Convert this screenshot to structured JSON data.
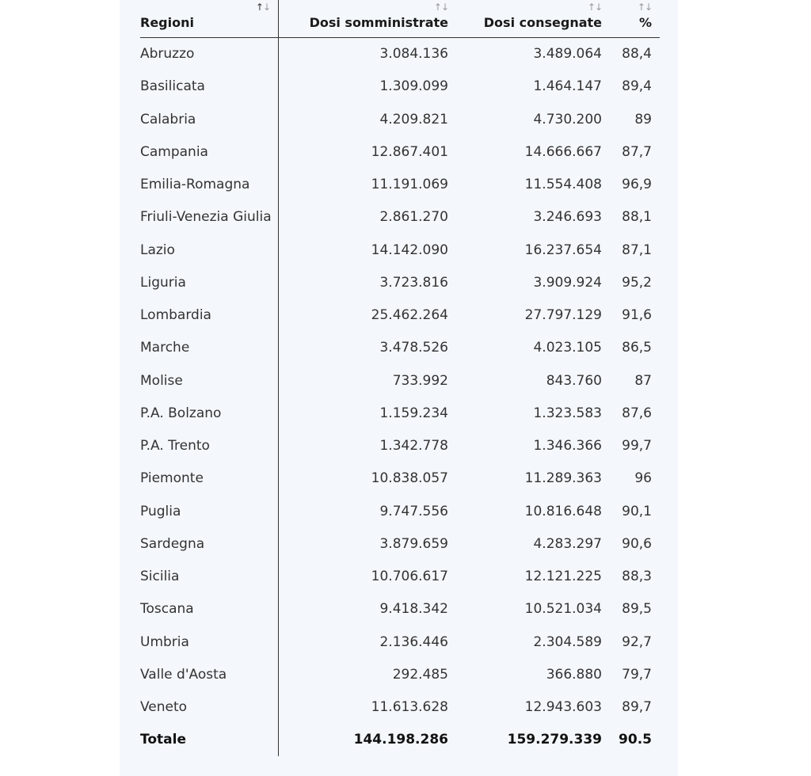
{
  "table": {
    "headers": {
      "region": "Regioni",
      "administered": "Dosi somministrate",
      "delivered": "Dosi consegnate",
      "percent": "%"
    },
    "sort_icon": "↑↓",
    "rows": [
      {
        "region": "Abruzzo",
        "administered": "3.084.136",
        "delivered": "3.489.064",
        "percent": "88,4"
      },
      {
        "region": "Basilicata",
        "administered": "1.309.099",
        "delivered": "1.464.147",
        "percent": "89,4"
      },
      {
        "region": "Calabria",
        "administered": "4.209.821",
        "delivered": "4.730.200",
        "percent": "89"
      },
      {
        "region": "Campania",
        "administered": "12.867.401",
        "delivered": "14.666.667",
        "percent": "87,7"
      },
      {
        "region": "Emilia-Romagna",
        "administered": "11.191.069",
        "delivered": "11.554.408",
        "percent": "96,9"
      },
      {
        "region": "Friuli-Venezia Giulia",
        "administered": "2.861.270",
        "delivered": "3.246.693",
        "percent": "88,1"
      },
      {
        "region": "Lazio",
        "administered": "14.142.090",
        "delivered": "16.237.654",
        "percent": "87,1"
      },
      {
        "region": "Liguria",
        "administered": "3.723.816",
        "delivered": "3.909.924",
        "percent": "95,2"
      },
      {
        "region": "Lombardia",
        "administered": "25.462.264",
        "delivered": "27.797.129",
        "percent": "91,6"
      },
      {
        "region": "Marche",
        "administered": "3.478.526",
        "delivered": "4.023.105",
        "percent": "86,5"
      },
      {
        "region": "Molise",
        "administered": "733.992",
        "delivered": "843.760",
        "percent": "87"
      },
      {
        "region": "P.A. Bolzano",
        "administered": "1.159.234",
        "delivered": "1.323.583",
        "percent": "87,6"
      },
      {
        "region": "P.A. Trento",
        "administered": "1.342.778",
        "delivered": "1.346.366",
        "percent": "99,7"
      },
      {
        "region": "Piemonte",
        "administered": "10.838.057",
        "delivered": "11.289.363",
        "percent": "96"
      },
      {
        "region": "Puglia",
        "administered": "9.747.556",
        "delivered": "10.816.648",
        "percent": "90,1"
      },
      {
        "region": "Sardegna",
        "administered": "3.879.659",
        "delivered": "4.283.297",
        "percent": "90,6"
      },
      {
        "region": "Sicilia",
        "administered": "10.706.617",
        "delivered": "12.121.225",
        "percent": "88,3"
      },
      {
        "region": "Toscana",
        "administered": "9.418.342",
        "delivered": "10.521.034",
        "percent": "89,5"
      },
      {
        "region": "Umbria",
        "administered": "2.136.446",
        "delivered": "2.304.589",
        "percent": "92,7"
      },
      {
        "region": "Valle d'Aosta",
        "administered": "292.485",
        "delivered": "366.880",
        "percent": "79,7"
      },
      {
        "region": "Veneto",
        "administered": "11.613.628",
        "delivered": "12.943.603",
        "percent": "89,7"
      }
    ],
    "total": {
      "region": "Totale",
      "administered": "144.198.286",
      "delivered": "159.279.339",
      "percent": "90.5"
    }
  }
}
